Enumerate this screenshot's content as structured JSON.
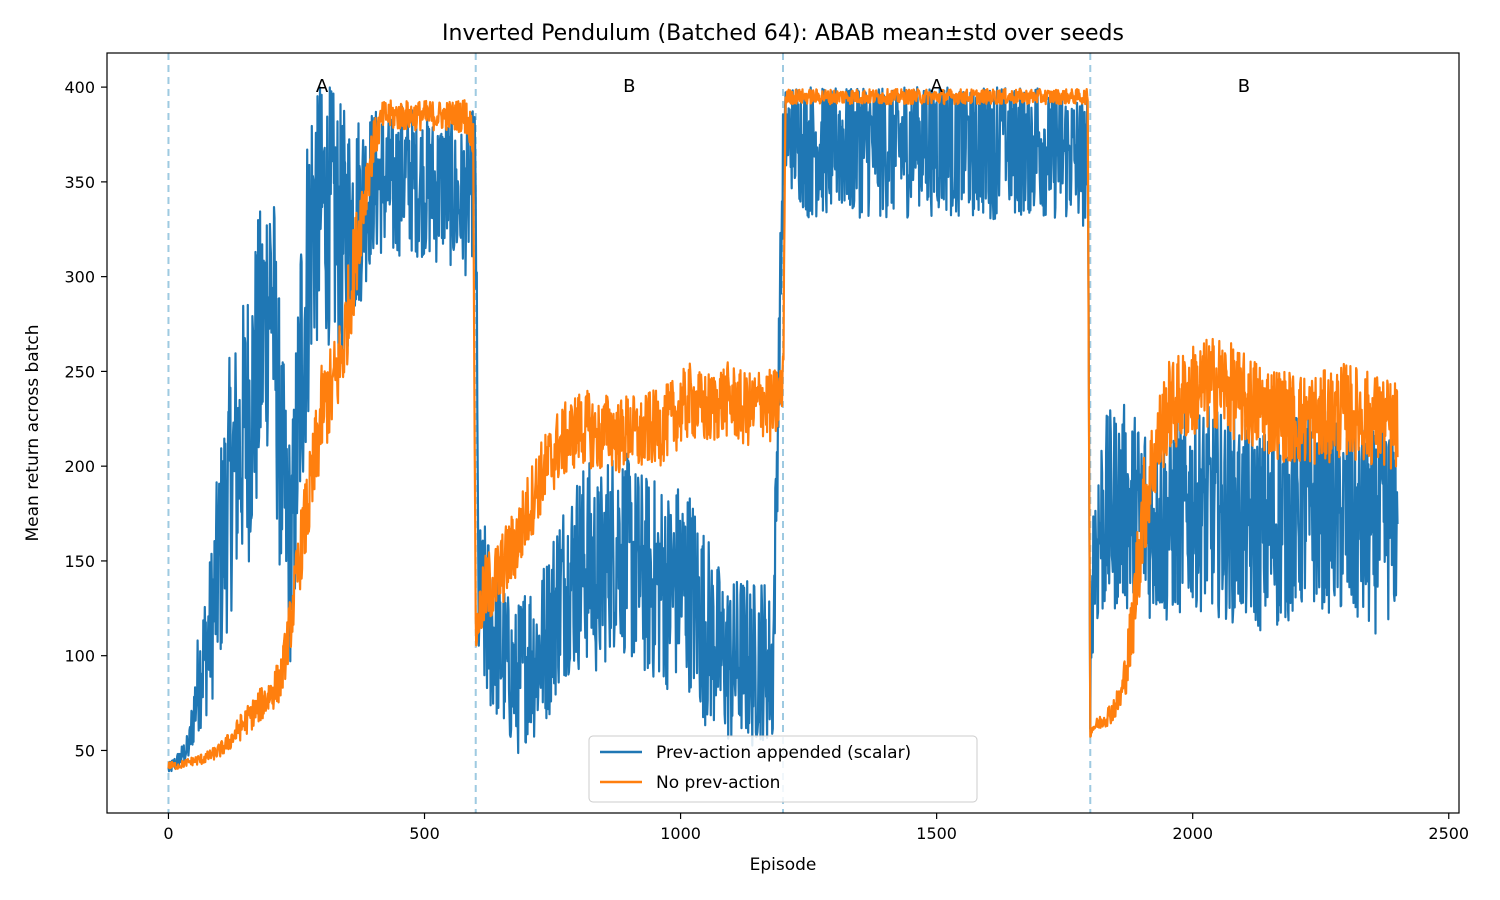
{
  "chart_data": {
    "type": "line",
    "title": "Inverted Pendulum (Batched 64): ABAB mean±std over seeds",
    "xlabel": "Episode",
    "ylabel": "Mean return across batch",
    "xlim": [
      -120,
      2520
    ],
    "ylim": [
      17,
      418
    ],
    "xticks": [
      0,
      500,
      1000,
      1500,
      2000,
      2500
    ],
    "yticks": [
      50,
      100,
      150,
      200,
      250,
      300,
      350,
      400
    ],
    "phase_boundaries": [
      0,
      600,
      1200,
      1800
    ],
    "phase_labels": [
      {
        "x": 300,
        "label": "A"
      },
      {
        "x": 900,
        "label": "B"
      },
      {
        "x": 1500,
        "label": "A"
      },
      {
        "x": 2100,
        "label": "B"
      }
    ],
    "legend_position": "lower center",
    "grid": false,
    "series": [
      {
        "name": "Prev-action appended (scalar)",
        "color": "#1f77b4",
        "x": [
          0,
          20,
          40,
          60,
          80,
          100,
          120,
          140,
          160,
          180,
          200,
          220,
          240,
          260,
          280,
          300,
          320,
          340,
          360,
          380,
          400,
          420,
          440,
          460,
          480,
          500,
          520,
          540,
          560,
          580,
          600,
          605,
          620,
          640,
          660,
          680,
          700,
          720,
          740,
          760,
          780,
          800,
          820,
          840,
          860,
          880,
          900,
          920,
          940,
          960,
          980,
          1000,
          1020,
          1040,
          1060,
          1080,
          1100,
          1120,
          1140,
          1160,
          1180,
          1200,
          1205,
          1250,
          1300,
          1400,
          1500,
          1600,
          1700,
          1795,
          1800,
          1805,
          1820,
          1840,
          1860,
          1880,
          1900,
          1950,
          2000,
          2050,
          2100,
          2150,
          2200,
          2250,
          2300,
          2350,
          2400
        ],
        "y": [
          40,
          45,
          52,
          90,
          110,
          150,
          190,
          210,
          230,
          260,
          300,
          200,
          150,
          260,
          330,
          340,
          330,
          320,
          330,
          340,
          350,
          350,
          345,
          355,
          350,
          350,
          345,
          350,
          340,
          340,
          355,
          130,
          120,
          110,
          95,
          85,
          100,
          100,
          110,
          130,
          140,
          145,
          150,
          140,
          155,
          160,
          150,
          145,
          140,
          140,
          135,
          140,
          135,
          120,
          110,
          100,
          95,
          100,
          95,
          100,
          90,
          360,
          375,
          370,
          372,
          370,
          372,
          370,
          372,
          360,
          90,
          150,
          170,
          175,
          180,
          175,
          175,
          170,
          180,
          175,
          170,
          165,
          175,
          180,
          170,
          165,
          175
        ],
        "band": [
          3,
          5,
          8,
          30,
          40,
          60,
          70,
          70,
          80,
          80,
          80,
          70,
          60,
          90,
          80,
          70,
          70,
          70,
          60,
          50,
          40,
          40,
          40,
          40,
          40,
          40,
          40,
          40,
          40,
          40,
          40,
          40,
          50,
          45,
          40,
          40,
          45,
          45,
          45,
          50,
          50,
          55,
          55,
          55,
          55,
          55,
          55,
          55,
          55,
          55,
          55,
          55,
          55,
          55,
          50,
          45,
          45,
          45,
          45,
          45,
          40,
          30,
          25,
          40,
          40,
          40,
          40,
          40,
          40,
          35,
          30,
          50,
          55,
          55,
          55,
          55,
          55,
          55,
          55,
          55,
          55,
          55,
          55,
          55,
          55,
          55,
          55
        ]
      },
      {
        "name": "No prev-action",
        "color": "#ff7f0e",
        "x": [
          0,
          20,
          40,
          60,
          80,
          100,
          120,
          140,
          160,
          180,
          200,
          220,
          240,
          260,
          280,
          300,
          320,
          340,
          360,
          380,
          400,
          420,
          440,
          460,
          480,
          500,
          520,
          540,
          560,
          580,
          595,
          600,
          605,
          620,
          640,
          660,
          680,
          700,
          720,
          740,
          760,
          780,
          800,
          820,
          840,
          860,
          880,
          900,
          920,
          940,
          960,
          980,
          1000,
          1020,
          1040,
          1060,
          1080,
          1100,
          1120,
          1140,
          1160,
          1180,
          1200,
          1205,
          1250,
          1300,
          1400,
          1500,
          1600,
          1700,
          1795,
          1800,
          1805,
          1820,
          1840,
          1860,
          1880,
          1900,
          1920,
          1950,
          2000,
          2050,
          2100,
          2150,
          2200,
          2250,
          2300,
          2350,
          2400
        ],
        "y": [
          42,
          42,
          44,
          45,
          47,
          50,
          55,
          62,
          68,
          74,
          80,
          88,
          120,
          160,
          190,
          230,
          240,
          260,
          300,
          340,
          370,
          385,
          385,
          385,
          385,
          385,
          385,
          385,
          385,
          385,
          375,
          110,
          120,
          135,
          140,
          150,
          160,
          175,
          190,
          200,
          210,
          215,
          220,
          220,
          215,
          220,
          215,
          220,
          215,
          220,
          220,
          225,
          230,
          235,
          230,
          230,
          235,
          235,
          230,
          230,
          235,
          230,
          240,
          395,
          395,
          395,
          395,
          395,
          395,
          395,
          395,
          60,
          62,
          65,
          70,
          78,
          110,
          170,
          200,
          230,
          240,
          245,
          235,
          230,
          225,
          225,
          230,
          225,
          220
        ],
        "band": [
          2,
          2,
          2,
          3,
          3,
          4,
          5,
          7,
          8,
          9,
          10,
          12,
          15,
          20,
          25,
          25,
          25,
          25,
          25,
          20,
          12,
          8,
          8,
          8,
          8,
          8,
          8,
          8,
          8,
          10,
          10,
          10,
          15,
          20,
          20,
          20,
          20,
          20,
          20,
          20,
          20,
          20,
          20,
          20,
          20,
          20,
          20,
          20,
          20,
          20,
          20,
          20,
          20,
          20,
          20,
          20,
          20,
          20,
          20,
          20,
          20,
          20,
          20,
          4,
          4,
          4,
          4,
          4,
          4,
          4,
          4,
          3,
          3,
          4,
          6,
          8,
          20,
          30,
          25,
          25,
          25,
          25,
          25,
          25,
          25,
          25,
          25,
          25,
          25
        ]
      }
    ]
  }
}
